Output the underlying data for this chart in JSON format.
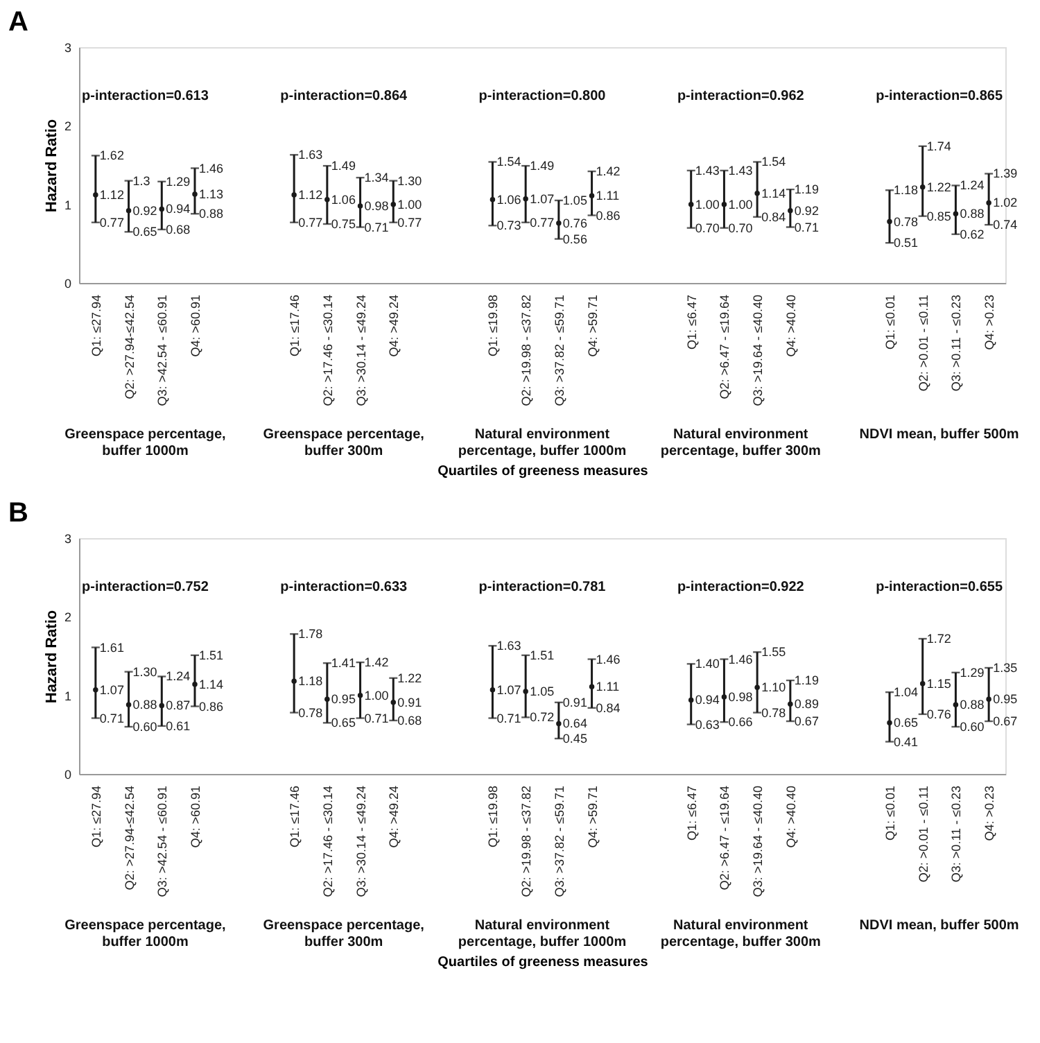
{
  "chart_data": [
    {
      "type": "scatter",
      "title": "A",
      "ylabel": "Hazard Ratio",
      "xlabel": "Quartiles of greeness measures",
      "categories": [
        "Q1:  ≤27.94",
        "Q2: >27.94-≤42.54",
        "Q3: >42.54 - ≤60.91",
        "Q4: >60.91",
        null,
        null,
        "Q1: ≤17.46",
        "Q2: >17.46 - ≤30.14",
        "Q3: >30.14 - ≤49.24",
        "Q4: >49.24",
        null,
        null,
        "Q1: ≤19.98",
        "Q2: >19.98 - ≤37.82",
        "Q3: >37.82 - ≤59.71",
        "Q4: >59.71",
        null,
        null,
        "Q1: ≤6.47",
        "Q2: >6.47 - ≤19.64",
        "Q3: >19.64 - ≤40.40",
        "Q4: >40.40",
        null,
        null,
        "Q1: ≤0.01",
        "Q2: >0.01 - ≤0.11",
        "Q3: >0.11 - ≤0.23",
        "Q4: >0.23"
      ],
      "series": [
        {
          "color": "#1a1a1a",
          "values": [
            1.12,
            0.92,
            0.94,
            1.13,
            null,
            null,
            1.12,
            1.06,
            0.98,
            1.0,
            null,
            null,
            1.06,
            1.07,
            0.76,
            1.11,
            null,
            null,
            1.0,
            1.0,
            1.14,
            0.92,
            null,
            null,
            0.78,
            1.22,
            0.88,
            1.02
          ],
          "value_labels": [
            "1.12",
            "0.92",
            "0.94",
            "1.13",
            null,
            null,
            "1.12",
            "1.06",
            "0.98",
            "1.00",
            null,
            null,
            "1.06",
            "1.07",
            "0.76",
            "1.11",
            null,
            null,
            "1.00",
            "1.00",
            "1.14",
            "0.92",
            null,
            null,
            "0.78",
            "1.22",
            "0.88",
            "1.02"
          ],
          "errors": [
            [
              0.77,
              1.62
            ],
            [
              0.65,
              1.3
            ],
            [
              0.68,
              1.29
            ],
            [
              0.88,
              1.46
            ],
            null,
            null,
            [
              0.77,
              1.63
            ],
            [
              0.75,
              1.49
            ],
            [
              0.71,
              1.34
            ],
            [
              0.77,
              1.3
            ],
            null,
            null,
            [
              0.73,
              1.54
            ],
            [
              0.77,
              1.49
            ],
            [
              0.56,
              1.05
            ],
            [
              0.86,
              1.42
            ],
            null,
            null,
            [
              0.7,
              1.43
            ],
            [
              0.7,
              1.43
            ],
            [
              0.84,
              1.54
            ],
            [
              0.71,
              1.19
            ],
            null,
            null,
            [
              0.51,
              1.18
            ],
            [
              0.85,
              1.74
            ],
            [
              0.62,
              1.24
            ],
            [
              0.74,
              1.39
            ]
          ]
        }
      ],
      "ylim": [
        0,
        3
      ],
      "yticks": [
        0,
        1,
        2,
        3
      ],
      "grid": false,
      "marker": "circle",
      "data_labels": true,
      "annotations": [
        "p-interaction=0.613",
        "p-interaction=0.864",
        "p-interaction=0.800",
        "p-interaction=0.962",
        "p-interaction=0.865",
        "Greenspace percentage, buffer 1000m",
        "Greenspace percentage, buffer 300m",
        "Natural environment percentage, buffer 1000m",
        "Natural environment percentage, buffer 300m",
        "NDVI mean, buffer 500m",
        {
          "text": "1.62",
          "x": "Q1:  ≤27.94",
          "y": 1.62
        },
        {
          "text": "0.77",
          "x": "Q1:  ≤27.94",
          "y": 0.77
        },
        {
          "text": "1.3",
          "x": "Q2: >27.94-≤42.54",
          "y": 1.3
        },
        {
          "text": "0.65",
          "x": "Q2: >27.94-≤42.54",
          "y": 0.65
        },
        {
          "text": "1.29",
          "x": "Q3: >42.54 - ≤60.91",
          "y": 1.29
        },
        {
          "text": "0.68",
          "x": "Q3: >42.54 - ≤60.91",
          "y": 0.68
        },
        {
          "text": "1.46",
          "x": "Q4: >60.91",
          "y": 1.46
        },
        {
          "text": "0.88",
          "x": "Q4: >60.91",
          "y": 0.88
        },
        {
          "text": "1.63",
          "x": "Q1: ≤17.46",
          "y": 1.63
        },
        {
          "text": "0.77",
          "x": "Q1: ≤17.46",
          "y": 0.77
        },
        {
          "text": "1.49",
          "x": "Q2: >17.46 - ≤30.14",
          "y": 1.49
        },
        {
          "text": "0.75",
          "x": "Q2: >17.46 - ≤30.14",
          "y": 0.75
        },
        {
          "text": "1.34",
          "x": "Q3: >30.14 - ≤49.24",
          "y": 1.34
        },
        {
          "text": "0.71",
          "x": "Q3: >30.14 - ≤49.24",
          "y": 0.71
        },
        {
          "text": "1.30",
          "x": "Q4: >49.24",
          "y": 1.3
        },
        {
          "text": "0.77",
          "x": "Q4: >49.24",
          "y": 0.77
        },
        {
          "text": "1.54",
          "x": "Q1: ≤19.98",
          "y": 1.54
        },
        {
          "text": "0.73",
          "x": "Q1: ≤19.98",
          "y": 0.73
        },
        {
          "text": "1.49",
          "x": "Q2: >19.98 - ≤37.82",
          "y": 1.49
        },
        {
          "text": "0.77",
          "x": "Q2: >19.98 - ≤37.82",
          "y": 0.77
        },
        {
          "text": "1.05",
          "x": "Q3: >37.82 - ≤59.71",
          "y": 1.05
        },
        {
          "text": "0.56",
          "x": "Q3: >37.82 - ≤59.71",
          "y": 0.56
        },
        {
          "text": "1.42",
          "x": "Q4: >59.71",
          "y": 1.42
        },
        {
          "text": "0.86",
          "x": "Q4: >59.71",
          "y": 0.86
        },
        {
          "text": "1.43",
          "x": "Q1: ≤6.47",
          "y": 1.43
        },
        {
          "text": "0.70",
          "x": "Q1: ≤6.47",
          "y": 0.7
        },
        {
          "text": "1.43",
          "x": "Q2: >6.47 - ≤19.64",
          "y": 1.43
        },
        {
          "text": "0.70",
          "x": "Q2: >6.47 - ≤19.64",
          "y": 0.7
        },
        {
          "text": "1.54",
          "x": "Q3: >19.64 - ≤40.40",
          "y": 1.54
        },
        {
          "text": "0.84",
          "x": "Q3: >19.64 - ≤40.40",
          "y": 0.84
        },
        {
          "text": "1.19",
          "x": "Q4: >40.40",
          "y": 1.19
        },
        {
          "text": "0.71",
          "x": "Q4: >40.40",
          "y": 0.71
        },
        {
          "text": "1.18",
          "x": "Q1: ≤0.01",
          "y": 1.18
        },
        {
          "text": "0.51",
          "x": "Q1: ≤0.01",
          "y": 0.51
        },
        {
          "text": "1.74",
          "x": "Q2: >0.01 - ≤0.11",
          "y": 1.74
        },
        {
          "text": "0.85",
          "x": "Q2: >0.01 - ≤0.11",
          "y": 0.85
        },
        {
          "text": "1.24",
          "x": "Q3: >0.11 - ≤0.23",
          "y": 1.24
        },
        {
          "text": "0.62",
          "x": "Q3: >0.11 - ≤0.23",
          "y": 0.62
        },
        {
          "text": "1.39",
          "x": "Q4: >0.23",
          "y": 1.39
        },
        {
          "text": "0.74",
          "x": "Q4: >0.23",
          "y": 0.74
        }
      ]
    },
    {
      "type": "scatter",
      "title": "B",
      "ylabel": "Hazard Ratio",
      "xlabel": "Quartiles of greeness measures",
      "categories": [
        "Q1:  ≤27.94",
        "Q2: >27.94-≤42.54",
        "Q3: >42.54 - ≤60.91",
        "Q4: >60.91",
        null,
        null,
        "Q1: ≤17.46",
        "Q2: >17.46 - ≤30.14",
        "Q3: >30.14 - ≤49.24",
        "Q4: >49.24",
        null,
        null,
        "Q1: ≤19.98",
        "Q2: >19.98 - ≤37.82",
        "Q3: >37.82 - ≤59.71",
        "Q4: >59.71",
        null,
        null,
        "Q1: ≤6.47",
        "Q2: >6.47 - ≤19.64",
        "Q3: >19.64 - ≤40.40",
        "Q4: >40.40",
        null,
        null,
        "Q1: ≤0.01",
        "Q2: >0.01 - ≤0.11",
        "Q3: >0.11 - ≤0.23",
        "Q4: >0.23"
      ],
      "series": [
        {
          "color": "#1a1a1a",
          "values": [
            1.07,
            0.88,
            0.87,
            1.14,
            null,
            null,
            1.18,
            0.95,
            1.0,
            0.91,
            null,
            null,
            1.07,
            1.05,
            0.64,
            1.11,
            null,
            null,
            0.94,
            0.98,
            1.1,
            0.89,
            null,
            null,
            0.65,
            1.15,
            0.88,
            0.95
          ],
          "value_labels": [
            "1.07",
            "0.88",
            "0.87",
            "1.14",
            null,
            null,
            "1.18",
            "0.95",
            "1.00",
            "0.91",
            null,
            null,
            "1.07",
            "1.05",
            "0.64",
            "1.11",
            null,
            null,
            "0.94",
            "0.98",
            "1.10",
            "0.89",
            null,
            null,
            "0.65",
            "1.15",
            "0.88",
            "0.95"
          ],
          "errors": [
            [
              0.71,
              1.61
            ],
            [
              0.6,
              1.3
            ],
            [
              0.61,
              1.24
            ],
            [
              0.86,
              1.51
            ],
            null,
            null,
            [
              0.78,
              1.78
            ],
            [
              0.65,
              1.41
            ],
            [
              0.71,
              1.42
            ],
            [
              0.68,
              1.22
            ],
            null,
            null,
            [
              0.71,
              1.63
            ],
            [
              0.72,
              1.51
            ],
            [
              0.45,
              0.91
            ],
            [
              0.84,
              1.46
            ],
            null,
            null,
            [
              0.63,
              1.4
            ],
            [
              0.66,
              1.46
            ],
            [
              0.78,
              1.55
            ],
            [
              0.67,
              1.19
            ],
            null,
            null,
            [
              0.41,
              1.04
            ],
            [
              0.76,
              1.72
            ],
            [
              0.6,
              1.29
            ],
            [
              0.67,
              1.35
            ]
          ]
        }
      ],
      "ylim": [
        0,
        3
      ],
      "yticks": [
        0,
        1,
        2,
        3
      ],
      "grid": false,
      "marker": "circle",
      "data_labels": true,
      "annotations": [
        "p-interaction=0.752",
        "p-interaction=0.633",
        "p-interaction=0.781",
        "p-interaction=0.922",
        "p-interaction=0.655",
        "Greenspace percentage, buffer 1000m",
        "Greenspace percentage, buffer 300m",
        "Natural environment percentage, buffer 1000m",
        "Natural environment percentage, buffer 300m",
        "NDVI mean, buffer 500m",
        {
          "text": "1.61",
          "x": "Q1:  ≤27.94",
          "y": 1.61
        },
        {
          "text": "0.71",
          "x": "Q1:  ≤27.94",
          "y": 0.71
        },
        {
          "text": "1.30",
          "x": "Q2: >27.94-≤42.54",
          "y": 1.3
        },
        {
          "text": "0.60",
          "x": "Q2: >27.94-≤42.54",
          "y": 0.6
        },
        {
          "text": "1.24",
          "x": "Q3: >42.54 - ≤60.91",
          "y": 1.24
        },
        {
          "text": "0.61",
          "x": "Q3: >42.54 - ≤60.91",
          "y": 0.61
        },
        {
          "text": "1.51",
          "x": "Q4: >60.91",
          "y": 1.51
        },
        {
          "text": "0.86",
          "x": "Q4: >60.91",
          "y": 0.86
        },
        {
          "text": "1.78",
          "x": "Q1: ≤17.46",
          "y": 1.78
        },
        {
          "text": "0.78",
          "x": "Q1: ≤17.46",
          "y": 0.78
        },
        {
          "text": "1.41",
          "x": "Q2: >17.46 - ≤30.14",
          "y": 1.41
        },
        {
          "text": "0.65",
          "x": "Q2: >17.46 - ≤30.14",
          "y": 0.65
        },
        {
          "text": "1.42",
          "x": "Q3: >30.14 - ≤49.24",
          "y": 1.42
        },
        {
          "text": "0.71",
          "x": "Q3: >30.14 - ≤49.24",
          "y": 0.71
        },
        {
          "text": "1.22",
          "x": "Q4: >49.24",
          "y": 1.22
        },
        {
          "text": "0.68",
          "x": "Q4: >49.24",
          "y": 0.68
        },
        {
          "text": "1.63",
          "x": "Q1: ≤19.98",
          "y": 1.63
        },
        {
          "text": "0.71",
          "x": "Q1: ≤19.98",
          "y": 0.71
        },
        {
          "text": "1.51",
          "x": "Q2: >19.98 - ≤37.82",
          "y": 1.51
        },
        {
          "text": "0.72",
          "x": "Q2: >19.98 - ≤37.82",
          "y": 0.72
        },
        {
          "text": "0.91",
          "x": "Q3: >37.82 - ≤59.71",
          "y": 0.91
        },
        {
          "text": "0.45",
          "x": "Q3: >37.82 - ≤59.71",
          "y": 0.45
        },
        {
          "text": "1.46",
          "x": "Q4: >59.71",
          "y": 1.46
        },
        {
          "text": "0.84",
          "x": "Q4: >59.71",
          "y": 0.84
        },
        {
          "text": "1.40",
          "x": "Q1: ≤6.47",
          "y": 1.4
        },
        {
          "text": "0.63",
          "x": "Q1: ≤6.47",
          "y": 0.63
        },
        {
          "text": "1.46",
          "x": "Q2: >6.47 - ≤19.64",
          "y": 1.46
        },
        {
          "text": "0.66",
          "x": "Q2: >6.47 - ≤19.64",
          "y": 0.66
        },
        {
          "text": "1.55",
          "x": "Q3: >19.64 - ≤40.40",
          "y": 1.55
        },
        {
          "text": "0.78",
          "x": "Q3: >19.64 - ≤40.40",
          "y": 0.78
        },
        {
          "text": "1.19",
          "x": "Q4: >40.40",
          "y": 1.19
        },
        {
          "text": "0.67",
          "x": "Q4: >40.40",
          "y": 0.67
        },
        {
          "text": "1.04",
          "x": "Q1: ≤0.01",
          "y": 1.04
        },
        {
          "text": "0.41",
          "x": "Q1: ≤0.01",
          "y": 0.41
        },
        {
          "text": "1.72",
          "x": "Q2: >0.01 - ≤0.11",
          "y": 1.72
        },
        {
          "text": "0.76",
          "x": "Q2: >0.01 - ≤0.11",
          "y": 0.76
        },
        {
          "text": "1.29",
          "x": "Q3: >0.11 - ≤0.23",
          "y": 1.29
        },
        {
          "text": "0.60",
          "x": "Q3: >0.11 - ≤0.23",
          "y": 0.6
        },
        {
          "text": "1.35",
          "x": "Q4: >0.23",
          "y": 1.35
        },
        {
          "text": "0.67",
          "x": "Q4: >0.23",
          "y": 0.67
        }
      ]
    }
  ]
}
